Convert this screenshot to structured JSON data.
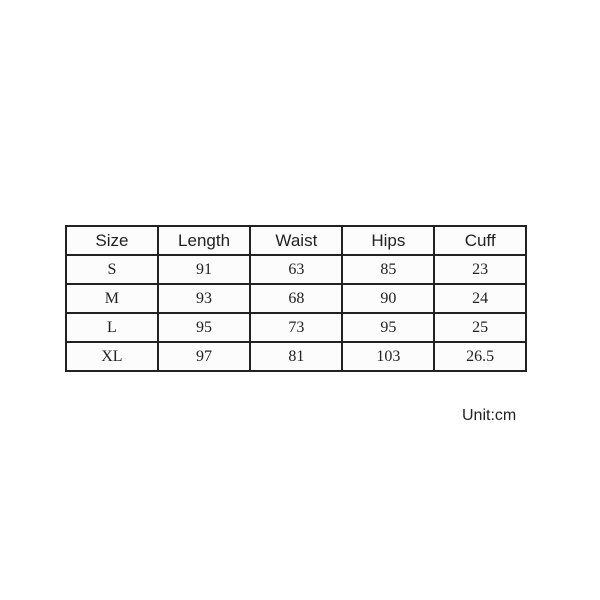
{
  "table": {
    "headers": [
      "Size",
      "Length",
      "Waist",
      "Hips",
      "Cuff"
    ],
    "rows": [
      [
        "S",
        "91",
        "63",
        "85",
        "23"
      ],
      [
        "M",
        "93",
        "68",
        "90",
        "24"
      ],
      [
        "L",
        "95",
        "73",
        "95",
        "25"
      ],
      [
        "XL",
        "97",
        "81",
        "103",
        "26.5"
      ]
    ]
  },
  "unit_label": "Unit:cm"
}
